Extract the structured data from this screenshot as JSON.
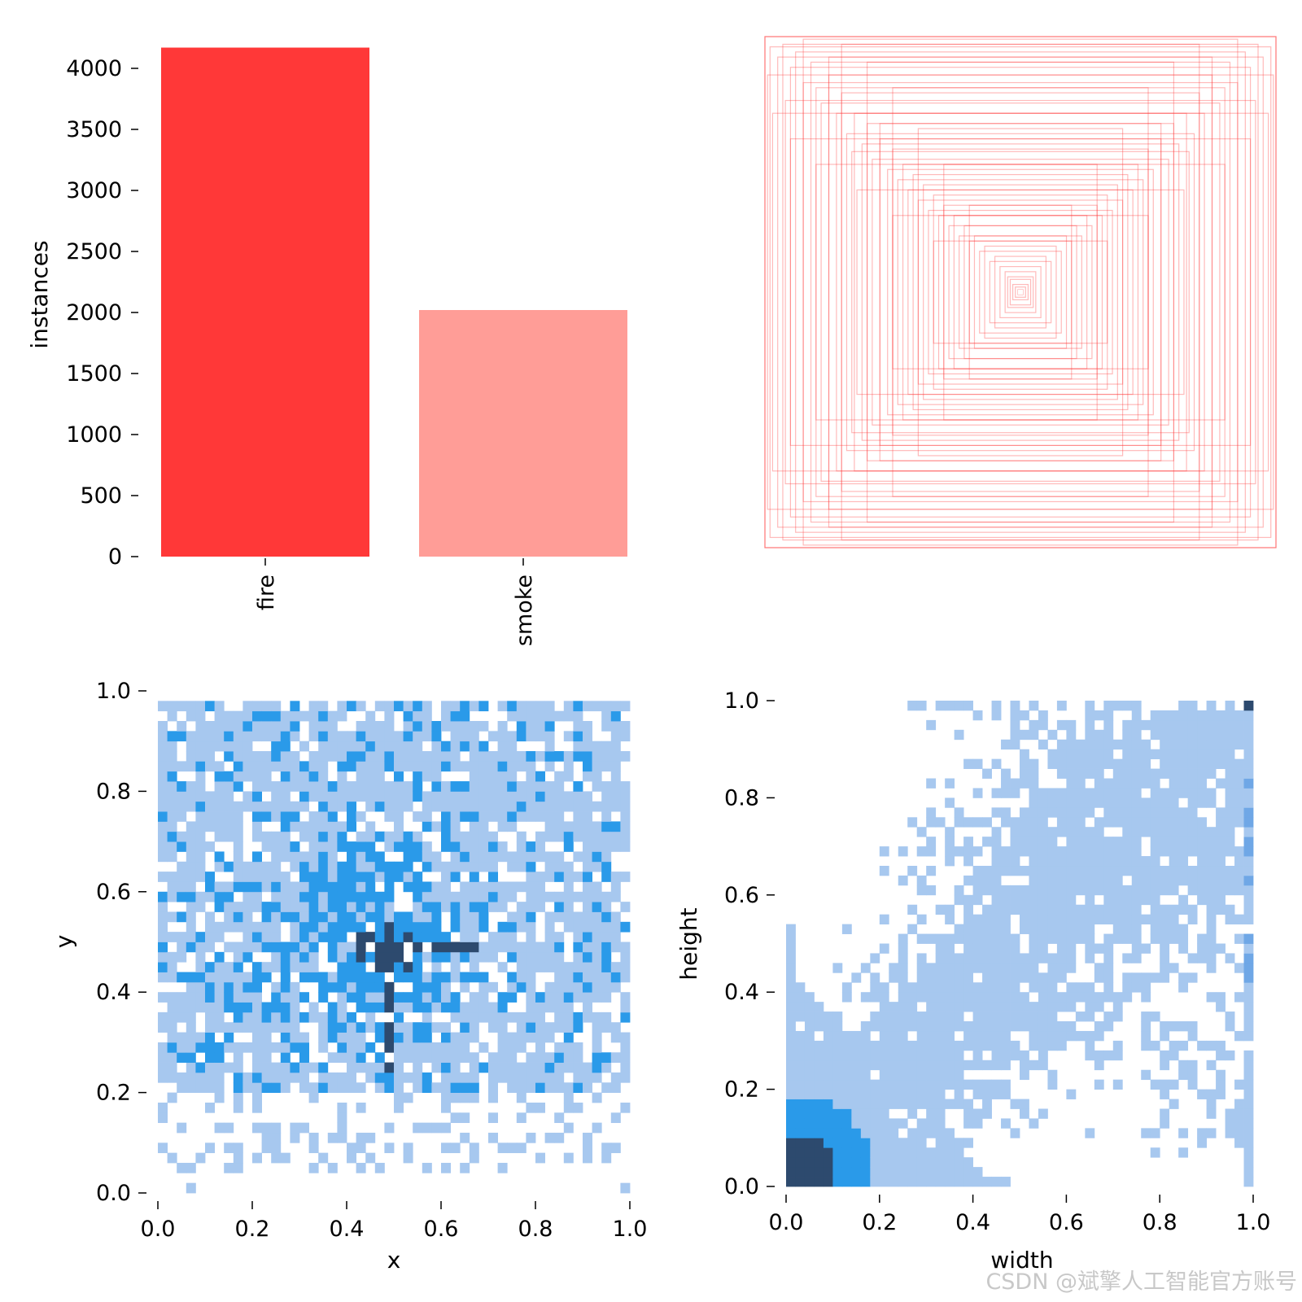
{
  "colors": {
    "fire": "#ff3838",
    "smoke": "#ff9d97",
    "box_stroke": "#ff3838",
    "hist_light": "#a7c8ef",
    "hist_mid": "#2a9ae9",
    "hist_dark": "#2d4a6e"
  },
  "chart_data": [
    {
      "type": "bar",
      "categories": [
        "fire",
        "smoke"
      ],
      "values": [
        4170,
        2020
      ],
      "xlabel": "",
      "ylabel": "instances",
      "ylim": [
        0,
        4200
      ],
      "yticks": [
        "0",
        "500",
        "1000",
        "1500",
        "2000",
        "2500",
        "3000",
        "3500",
        "4000"
      ],
      "grid": false
    },
    {
      "type": "scatter",
      "description_of_kind": "overlay of normalized bounding boxes centered at (0.5, 0.5)",
      "xlim": [
        0,
        1
      ],
      "ylim": [
        0,
        1
      ],
      "boxes_wh": [
        [
          1.0,
          1.0
        ],
        [
          0.98,
          0.96
        ],
        [
          0.95,
          0.92
        ],
        [
          0.93,
          0.97
        ],
        [
          0.9,
          0.88
        ],
        [
          0.88,
          0.94
        ],
        [
          0.85,
          0.82
        ],
        [
          0.82,
          0.9
        ],
        [
          0.8,
          0.8
        ],
        [
          0.78,
          0.74
        ],
        [
          0.75,
          0.85
        ],
        [
          0.72,
          0.7
        ],
        [
          0.7,
          0.78
        ],
        [
          0.68,
          0.62
        ],
        [
          0.65,
          0.7
        ],
        [
          0.62,
          0.58
        ],
        [
          0.6,
          0.66
        ],
        [
          0.58,
          0.52
        ],
        [
          0.55,
          0.6
        ],
        [
          0.52,
          0.48
        ],
        [
          0.5,
          0.56
        ],
        [
          0.48,
          0.44
        ],
        [
          0.46,
          0.5
        ],
        [
          0.44,
          0.4
        ],
        [
          0.42,
          0.46
        ],
        [
          0.4,
          0.36
        ],
        [
          0.38,
          0.42
        ],
        [
          0.36,
          0.32
        ],
        [
          0.34,
          0.38
        ],
        [
          0.32,
          0.3
        ],
        [
          0.3,
          0.34
        ],
        [
          0.28,
          0.26
        ],
        [
          0.26,
          0.3
        ],
        [
          0.24,
          0.22
        ],
        [
          0.22,
          0.26
        ],
        [
          0.2,
          0.2
        ],
        [
          0.18,
          0.22
        ],
        [
          0.16,
          0.16
        ],
        [
          0.14,
          0.18
        ],
        [
          0.12,
          0.12
        ],
        [
          0.1,
          0.14
        ],
        [
          0.08,
          0.1
        ],
        [
          0.06,
          0.08
        ],
        [
          0.05,
          0.06
        ],
        [
          0.04,
          0.05
        ],
        [
          0.03,
          0.03
        ],
        [
          0.02,
          0.02
        ],
        [
          0.01,
          0.01
        ],
        [
          0.97,
          0.7
        ],
        [
          0.7,
          0.97
        ],
        [
          0.6,
          0.9
        ],
        [
          0.9,
          0.6
        ],
        [
          0.5,
          0.8
        ],
        [
          0.8,
          0.5
        ],
        [
          0.4,
          0.64
        ],
        [
          0.64,
          0.4
        ],
        [
          0.3,
          0.5
        ],
        [
          0.5,
          0.3
        ],
        [
          0.2,
          0.34
        ],
        [
          0.34,
          0.2
        ],
        [
          0.99,
          0.85
        ],
        [
          0.85,
          0.99
        ],
        [
          0.92,
          0.75
        ],
        [
          0.75,
          0.92
        ],
        [
          0.66,
          0.55
        ],
        [
          0.55,
          0.66
        ]
      ]
    },
    {
      "type": "heatmap",
      "xlabel": "x",
      "ylabel": "y",
      "xlim": [
        0,
        1
      ],
      "ylim": [
        0,
        1
      ],
      "xticks": [
        "0.0",
        "0.2",
        "0.4",
        "0.6",
        "0.8",
        "1.0"
      ],
      "yticks": [
        "0.0",
        "0.2",
        "0.4",
        "0.6",
        "0.8",
        "1.0"
      ],
      "bins": 50,
      "distribution": "dense band for y in 0.2–0.95 across x 0–1, sparse below 0.2; peak column near x=0.48 (y 0.25–0.52) and a horizontal dark arm at y≈0.5 from x≈0.45 to 0.67"
    },
    {
      "type": "heatmap",
      "xlabel": "width",
      "ylabel": "height",
      "xlim": [
        0,
        1
      ],
      "ylim": [
        0,
        1
      ],
      "xticks": [
        "0.0",
        "0.2",
        "0.4",
        "0.6",
        "0.8",
        "1.0"
      ],
      "yticks": [
        "0.0",
        "0.2",
        "0.4",
        "0.6",
        "0.8",
        "1.0"
      ],
      "bins": 50,
      "distribution": "strong peak near width≈0.03, height≈0.04; diagonal spread toward (1,1); dense column at width≈0.99; single darkest cell at (0.99, 0.99)"
    }
  ],
  "watermark": "CSDN @斌擎人工智能官方账号"
}
